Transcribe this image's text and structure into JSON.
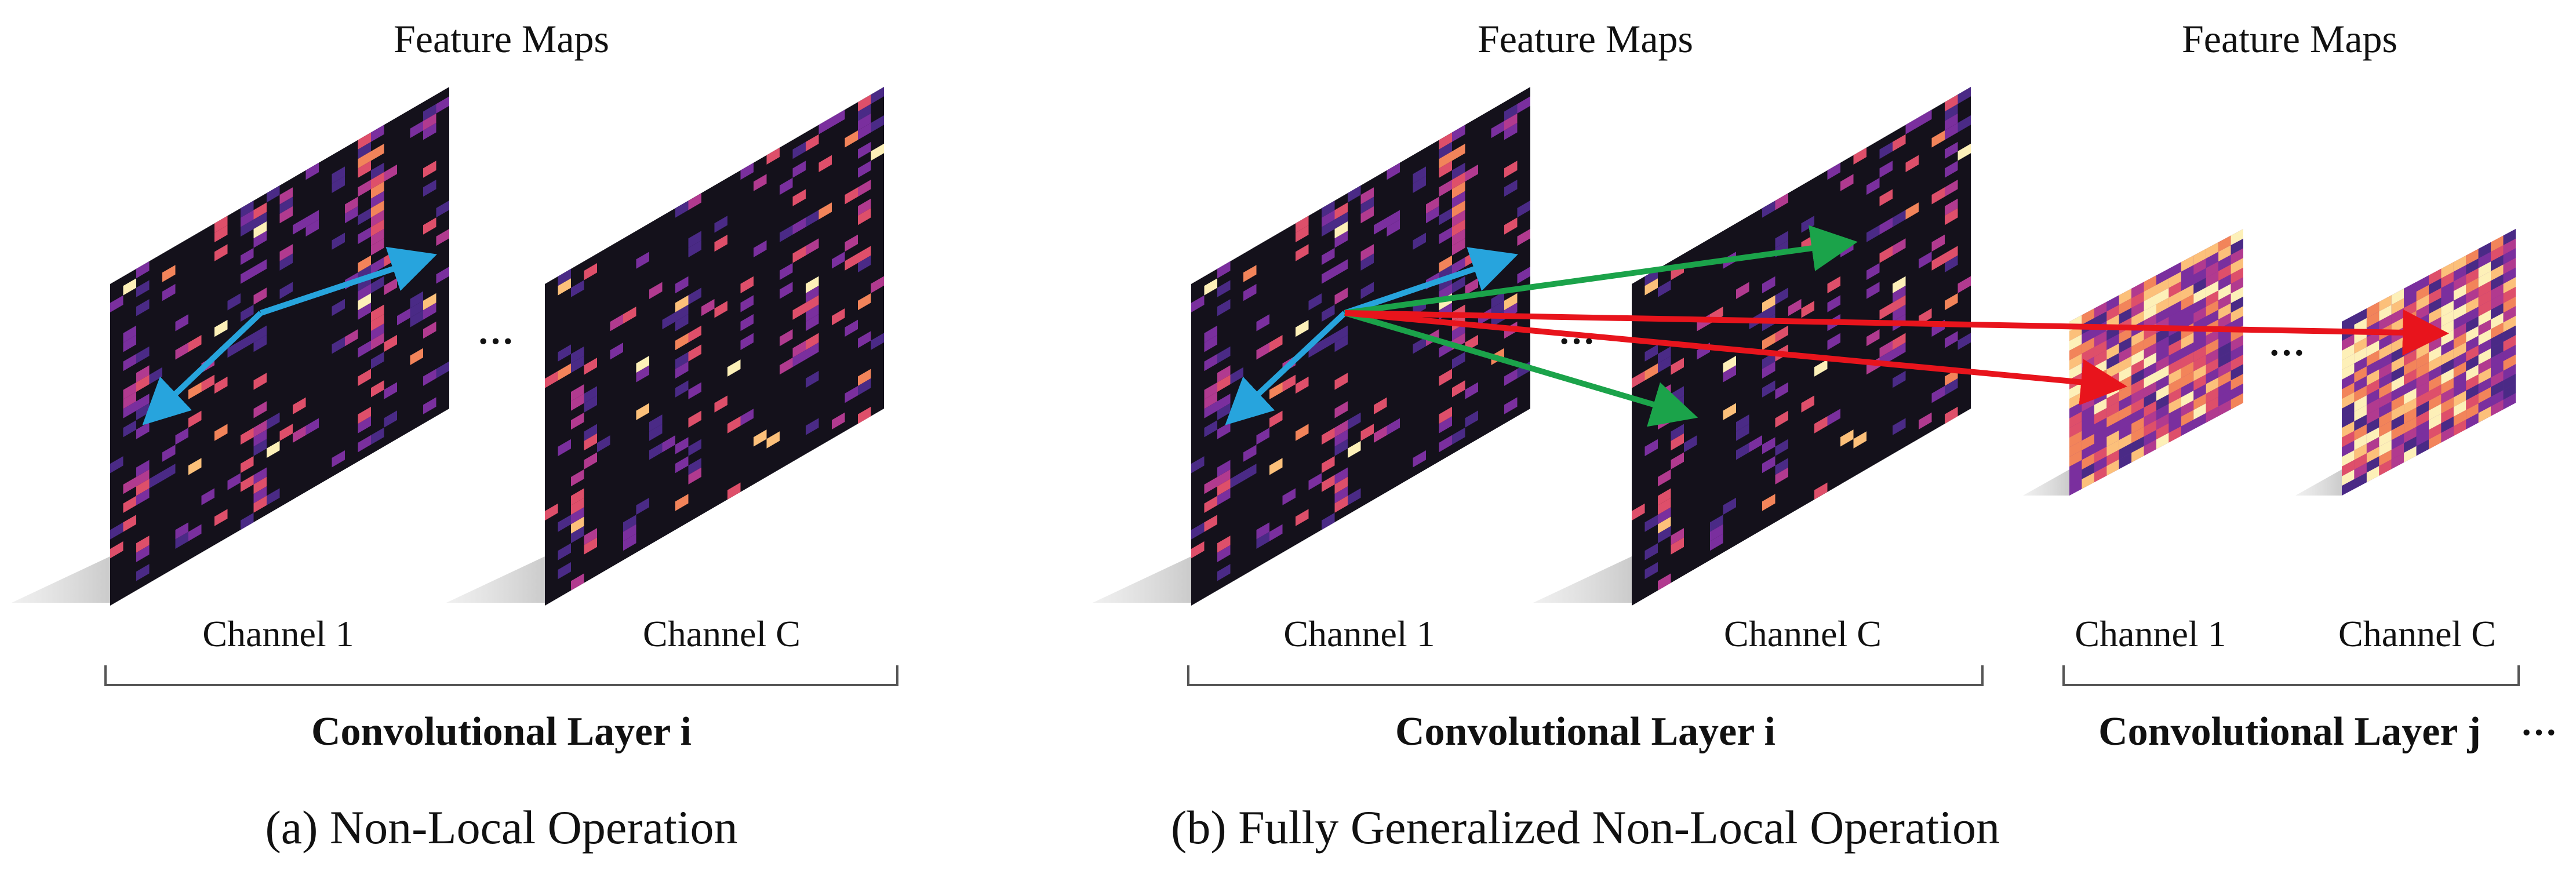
{
  "panel_a": {
    "feature_maps_title": "Feature Maps",
    "channel_first": "Channel 1",
    "channel_last": "Channel C",
    "ellipsis": "···",
    "layer_label": "Convolutional Layer i",
    "caption": "(a) Non-Local Operation"
  },
  "panel_b": {
    "feature_maps_title_i": "Feature Maps",
    "feature_maps_title_j": "Feature Maps",
    "channel_first_i": "Channel 1",
    "channel_last_i": "Channel C",
    "channel_first_j": "Channel 1",
    "channel_last_j": "Channel C",
    "ellipsis_i": "···",
    "ellipsis_j": "···",
    "layer_label_i": "Convolutional Layer i",
    "layer_label_j": "Convolutional Layer j",
    "layer_trailing_ellipsis": "···",
    "caption": "(b) Fully Generalized Non-Local Operation"
  },
  "colors": {
    "map_background": "#14111b",
    "arrow_same_channel": "#27a4dd",
    "arrow_cross_channel": "#1ba34a",
    "arrow_cross_layer": "#e8141c",
    "shadow": "#cfcfcf",
    "brace": "#555555"
  },
  "heatmap_palette": [
    "#2a1f4a",
    "#4a2a86",
    "#7a2f9e",
    "#b13a8f",
    "#de4f6a",
    "#f2845a",
    "#fcc07a",
    "#fdf0b8"
  ]
}
